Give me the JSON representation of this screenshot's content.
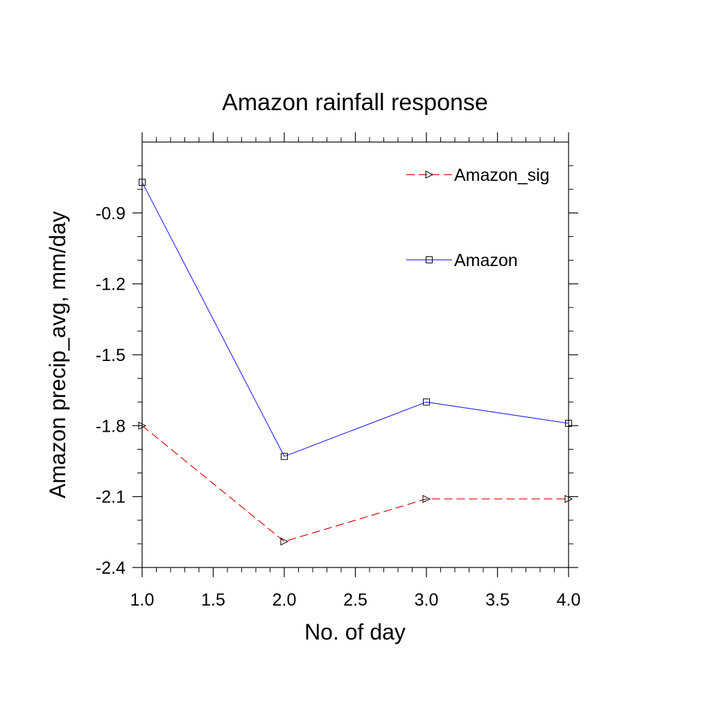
{
  "chart_data": {
    "type": "line",
    "title": "Amazon rainfall response",
    "xlabel": "No. of day",
    "ylabel": "Amazon precip_avg, mm/day",
    "xlim": [
      1.0,
      4.0
    ],
    "ylim": [
      -2.4,
      -0.6
    ],
    "x_ticks": [
      1.0,
      1.5,
      2.0,
      2.5,
      3.0,
      3.5,
      4.0
    ],
    "x_tick_labels": [
      "1.0",
      "1.5",
      "2.0",
      "2.5",
      "3.0",
      "3.5",
      "4.0"
    ],
    "y_ticks": [
      -2.4,
      -2.1,
      -1.8,
      -1.5,
      -1.2,
      -0.9
    ],
    "y_tick_labels": [
      "-2.4",
      "-2.1",
      "-1.8",
      "-1.5",
      "-1.2",
      "-0.9"
    ],
    "x": [
      1.0,
      2.0,
      3.0,
      4.0
    ],
    "series": [
      {
        "name": "Amazon_sig",
        "values": [
          -1.8,
          -2.29,
          -2.11,
          -2.11
        ],
        "color": "#e00000",
        "line_style": "dashed",
        "marker": "triangle-right"
      },
      {
        "name": "Amazon",
        "values": [
          -0.77,
          -1.93,
          -1.7,
          -1.79
        ],
        "color": "#3030ff",
        "line_style": "solid",
        "marker": "square"
      }
    ],
    "legend_placement": "top-right",
    "grid": false
  }
}
